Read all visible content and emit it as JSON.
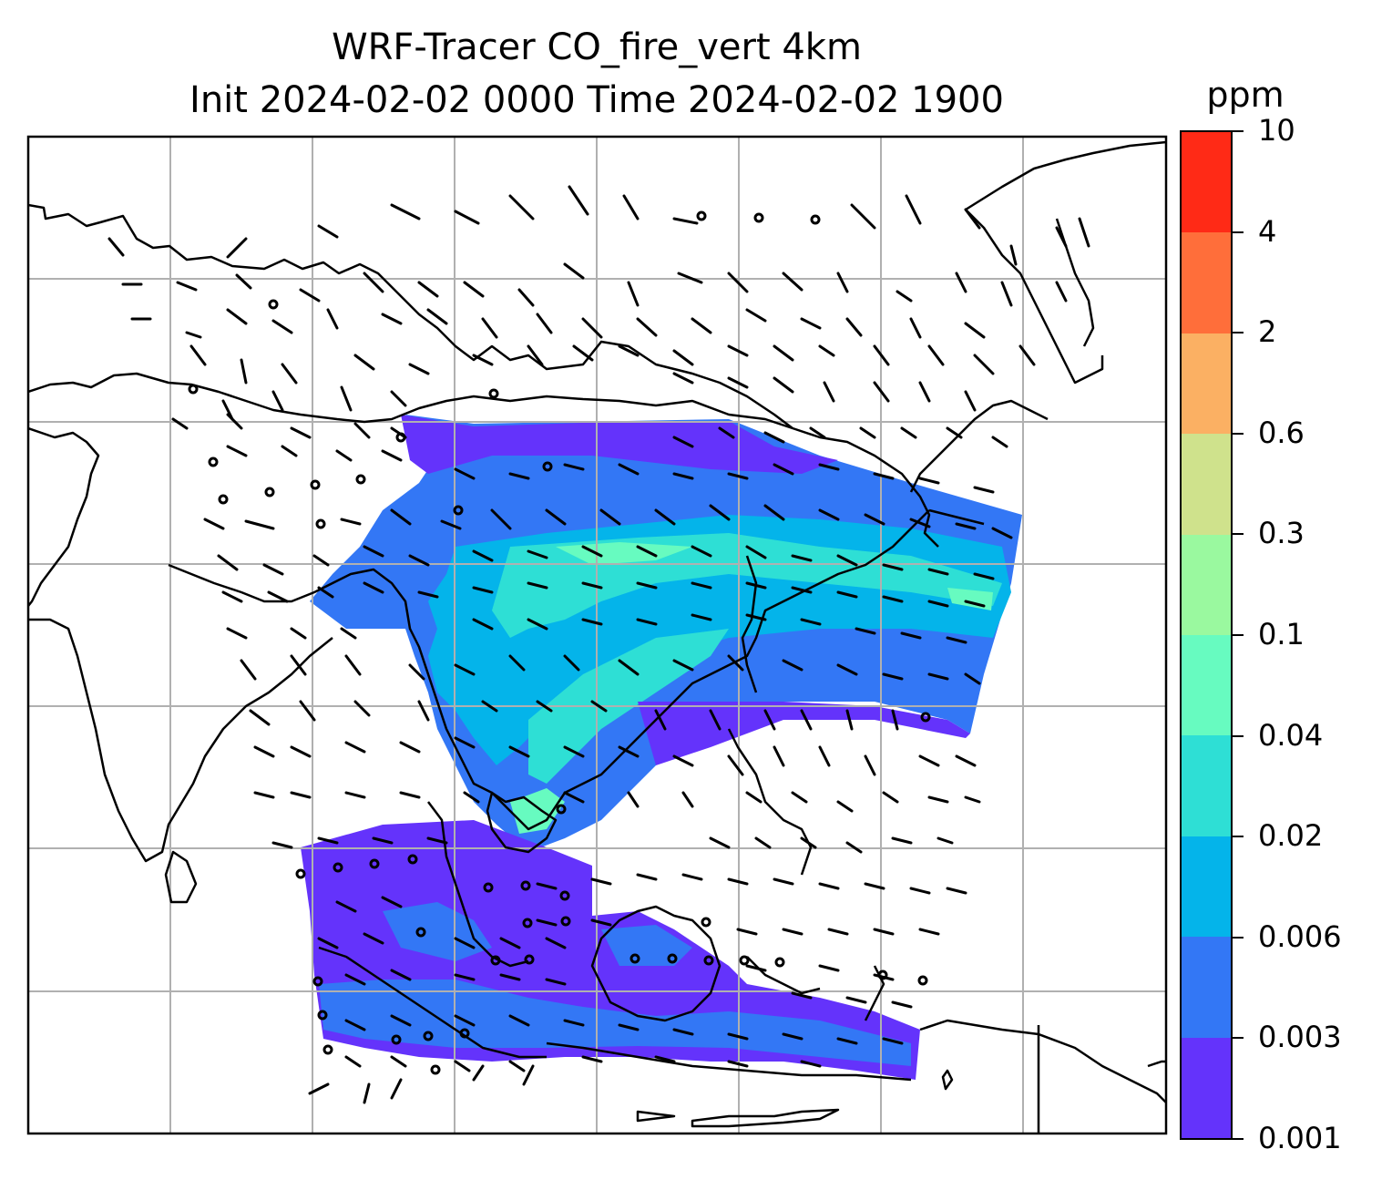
{
  "title": {
    "line1": "WRF-Tracer CO_fire_vert 4km",
    "line2": "Init 2024-02-02 0000 Time 2024-02-02 1900"
  },
  "colorbar": {
    "unit": "ppm",
    "tick_labels": [
      "10",
      "4",
      "2",
      "0.6",
      "0.3",
      "0.1",
      "0.04",
      "0.02",
      "0.006",
      "0.003",
      "0.001"
    ],
    "colors_top_to_bottom": [
      "#ff2a16",
      "#ff6e3a",
      "#fbb063",
      "#cfe28c",
      "#9af99f",
      "#67fbc0",
      "#2edfd5",
      "#04b4ea",
      "#3377f5",
      "#6433fb"
    ]
  },
  "map": {
    "gridlines": true,
    "gridline_color": "#b0b0b0",
    "coastline_color": "#000000",
    "barb_color": "#000000"
  }
}
